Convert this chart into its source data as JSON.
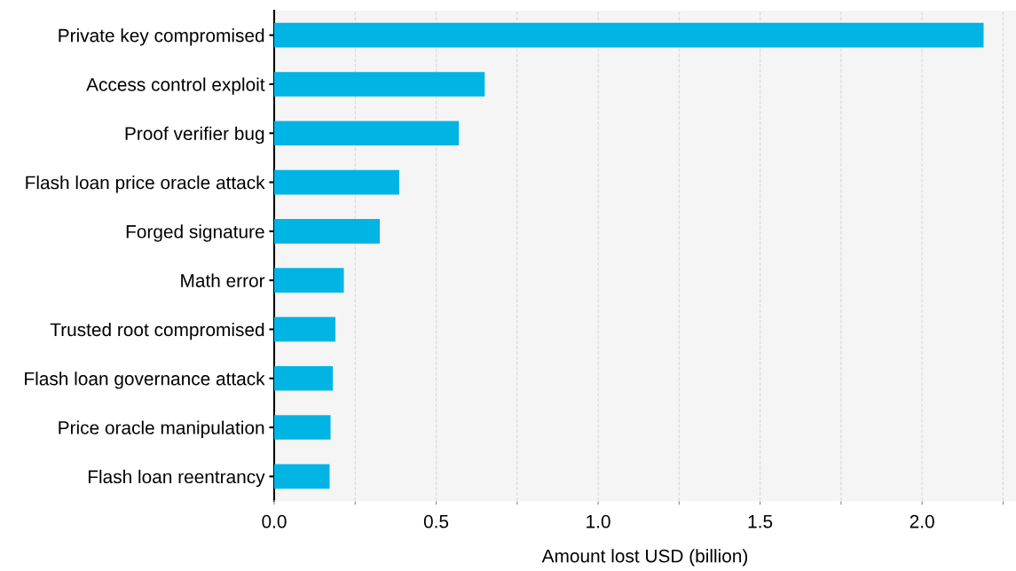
{
  "chart_data": {
    "type": "bar",
    "orientation": "horizontal",
    "xlabel": "Amount lost USD (billion)",
    "categories": [
      "Private key compromised",
      "Access control exploit",
      "Proof verifier bug",
      "Flash loan price oracle attack",
      "Forged signature",
      "Math error",
      "Trusted root compromised",
      "Flash loan governance attack",
      "Price oracle manipulation",
      "Flash loan reentrancy"
    ],
    "values": [
      2.19,
      0.65,
      0.57,
      0.386,
      0.326,
      0.215,
      0.189,
      0.181,
      0.174,
      0.171
    ],
    "color": "#00b4e4",
    "xlim": [
      0,
      2.29
    ],
    "xticks": [
      {
        "value": 0.0,
        "label": "0.0"
      },
      {
        "value": 0.25,
        "label": null
      },
      {
        "value": 0.5,
        "label": "0.5"
      },
      {
        "value": 0.75,
        "label": null
      },
      {
        "value": 1.0,
        "label": "1.0"
      },
      {
        "value": 1.25,
        "label": null
      },
      {
        "value": 1.5,
        "label": "1.5"
      },
      {
        "value": 1.75,
        "label": null
      },
      {
        "value": 2.0,
        "label": "2.0"
      },
      {
        "value": 2.25,
        "label": null
      }
    ],
    "grid": "x"
  }
}
